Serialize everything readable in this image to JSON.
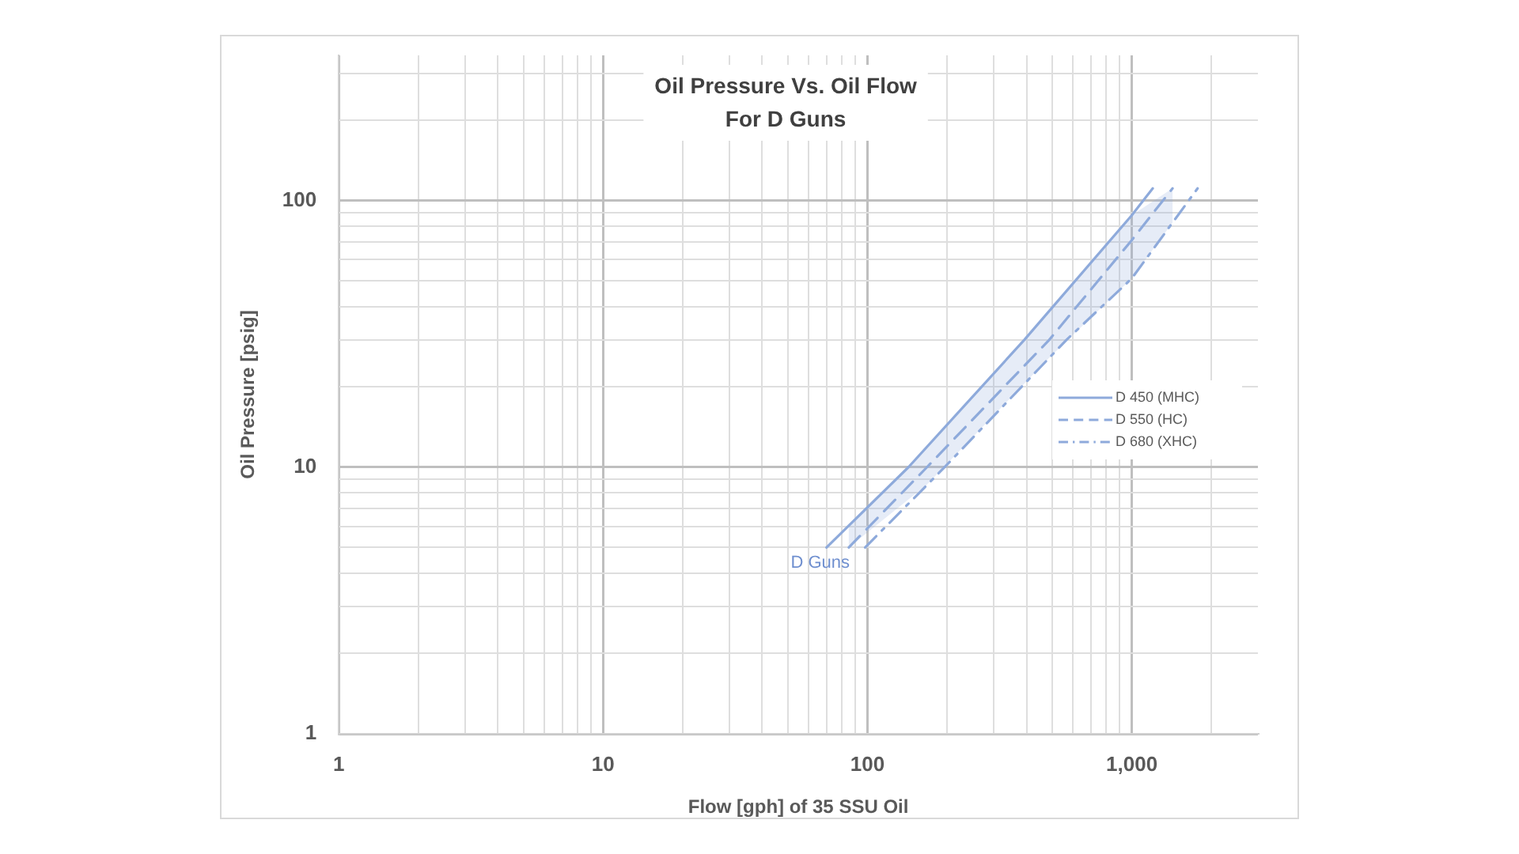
{
  "chart_data": {
    "type": "line",
    "title": "Oil Pressure Vs. Oil Flow\nFor D Guns",
    "xlabel": "Flow [gph] of 35 SSU Oil",
    "ylabel": "Oil Pressure [psig]",
    "log": "xy",
    "grid": true,
    "legend": "right",
    "marker": "none",
    "xlim": [
      1,
      3000
    ],
    "ylim": [
      1,
      350
    ],
    "xticks": [
      1,
      {
        "value": 2,
        "label": null
      },
      {
        "value": 3,
        "label": null
      },
      {
        "value": 4,
        "label": null
      },
      {
        "value": 5,
        "label": null
      },
      {
        "value": 6,
        "label": null
      },
      {
        "value": 7,
        "label": null
      },
      {
        "value": 8,
        "label": null
      },
      {
        "value": 9,
        "label": null
      },
      10,
      {
        "value": 20,
        "label": null
      },
      {
        "value": 30,
        "label": null
      },
      {
        "value": 40,
        "label": null
      },
      {
        "value": 50,
        "label": null
      },
      {
        "value": 60,
        "label": null
      },
      {
        "value": 70,
        "label": null
      },
      {
        "value": 80,
        "label": null
      },
      {
        "value": 90,
        "label": null
      },
      100,
      {
        "value": 200,
        "label": null
      },
      {
        "value": 300,
        "label": null
      },
      {
        "value": 400,
        "label": null
      },
      {
        "value": 500,
        "label": null
      },
      {
        "value": 600,
        "label": null
      },
      {
        "value": 700,
        "label": null
      },
      {
        "value": 800,
        "label": null
      },
      {
        "value": 900,
        "label": null
      },
      {
        "value": 1000,
        "label": "1,000"
      },
      {
        "value": 2000,
        "label": null
      }
    ],
    "yticks": [
      1,
      {
        "value": 2,
        "label": null
      },
      {
        "value": 3,
        "label": null
      },
      {
        "value": 4,
        "label": null
      },
      {
        "value": 5,
        "label": null
      },
      {
        "value": 6,
        "label": null
      },
      {
        "value": 7,
        "label": null
      },
      {
        "value": 8,
        "label": null
      },
      {
        "value": 9,
        "label": null
      },
      10,
      {
        "value": 20,
        "label": null
      },
      {
        "value": 30,
        "label": null
      },
      {
        "value": 40,
        "label": null
      },
      {
        "value": 50,
        "label": null
      },
      {
        "value": 60,
        "label": null
      },
      {
        "value": 70,
        "label": null
      },
      {
        "value": 80,
        "label": null
      },
      {
        "value": 90,
        "label": null
      },
      100,
      {
        "value": 200,
        "label": null
      },
      {
        "value": 300,
        "label": null
      }
    ],
    "series": [
      {
        "name": "D 450 (MHC)",
        "color": "#8eaadb",
        "line_style": "solid",
        "x": [
          70,
          143,
          392,
          1000,
          1200
        ],
        "values": [
          5,
          10,
          30,
          88,
          111
        ]
      },
      {
        "name": "D 550 (HC)",
        "color": "#8eaadb",
        "line_style": "dashed",
        "x": [
          85,
          168,
          487,
          1000,
          1426
        ],
        "values": [
          5,
          10,
          30,
          71,
          111
        ],
        "lower": [
          5,
          8.6,
          25.7,
          51,
          82.6
        ],
        "upper": [
          6,
          11.9,
          38.4,
          88,
          111
        ]
      },
      {
        "name": "D 680 (XHC)",
        "color": "#8eaadb",
        "line_style": "dashdot",
        "x": [
          98,
          196,
          566,
          1000,
          1774
        ],
        "values": [
          5,
          10,
          30,
          51,
          111
        ]
      }
    ],
    "annotations": [
      "D Guns"
    ]
  }
}
